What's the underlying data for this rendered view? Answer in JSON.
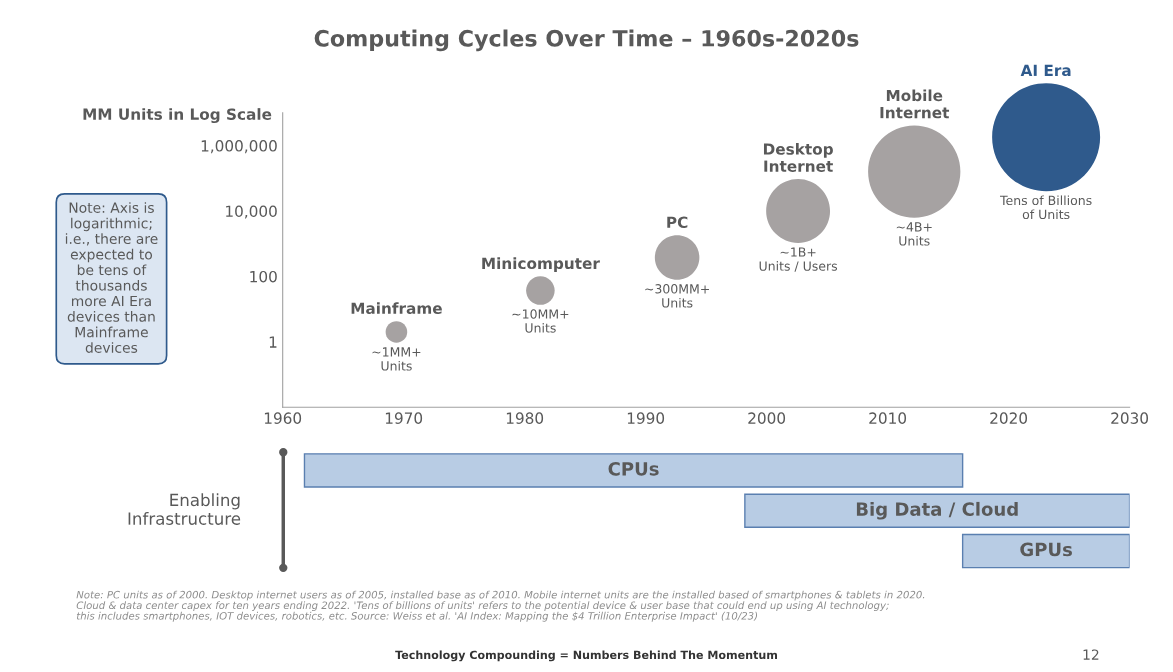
{
  "chart_data": [
    {
      "type": "bubble",
      "title": "Computing Cycles Over Time – 1960s-2020s",
      "ylabel": "MM Units in Log Scale",
      "log": "y",
      "xlim": [
        1960,
        2030
      ],
      "xticks": [
        1960,
        1970,
        1980,
        1990,
        2000,
        2010,
        2020,
        2030
      ],
      "ylim": [
        0.01,
        10000000
      ],
      "yticks": [
        1,
        100,
        {
          "value": 10000,
          "label": "10,000"
        },
        {
          "value": 1000000,
          "label": "1,000,000"
        }
      ],
      "grid": false,
      "legend": false,
      "series": [
        {
          "name": "Mainframe",
          "color": "#a6a2a2",
          "x": [
            1969.4
          ],
          "values": [
            2
          ],
          "sizes": [
            0.04
          ]
        },
        {
          "name": "Minicomputer",
          "color": "#a6a2a2",
          "x": [
            1981.3
          ],
          "values": [
            37
          ],
          "sizes": [
            0.07
          ]
        },
        {
          "name": "PC",
          "color": "#a6a2a2",
          "x": [
            1992.6
          ],
          "values": [
            380
          ],
          "sizes": [
            0.17
          ]
        },
        {
          "name": "Desktop\nInternet",
          "color": "#a6a2a2",
          "x": [
            2002.6
          ],
          "values": [
            10000
          ],
          "sizes": [
            0.35
          ]
        },
        {
          "name": "Mobile\nInternet",
          "color": "#a6a2a2",
          "x": [
            2012.2
          ],
          "values": [
            160000
          ],
          "sizes": [
            0.73
          ]
        },
        {
          "name": "AI Era",
          "color": "#2f5a8c",
          "x": [
            2023.1
          ],
          "values": [
            1800000
          ],
          "sizes": [
            1
          ]
        }
      ],
      "annotations": [
        "~1MM+\nUnits",
        "~10MM+\nUnits",
        "~300MM+\nUnits",
        "~1B+\nUnits / Users",
        "~4B+\nUnits",
        "Tens of Billions\nof Units",
        "Note: Axis is\nlogarithmic;\ni.e., there are\nexpected to\nbe tens of\nthousands\nmore AI Era\ndevices than\nMainframe\ndevices",
        "Note: PC units as of 2000. Desktop internet users as of 2005, installed base as of 2010. Mobile internet units are the installed based of smartphones & tablets in 2020.\nCloud & data center capex for ten years ending 2022. 'Tens of billions of units' refers to the potential device & user base that could end up using AI technology;\nthis includes smartphones, IOT devices, robotics, etc. Source: Weiss et al. 'AI Index: Mapping the $4 Trillion Enterprise Impact' (10/23)",
        "Technology Compounding = Numbers Behind The Momentum",
        "12"
      ]
    },
    {
      "type": "bar",
      "orientation": "horizontal",
      "ylabel": "Enabling\nInfrastructure",
      "categories": [
        "CPUs",
        "Big Data / Cloud",
        "GPUs"
      ],
      "base": [
        1961.8,
        1998.2,
        2016.2
      ],
      "values": [
        54.4,
        31.8,
        13.8
      ],
      "color": "#b8cce4",
      "xlim": [
        1960,
        2030
      ],
      "tick_labels": false
    }
  ]
}
